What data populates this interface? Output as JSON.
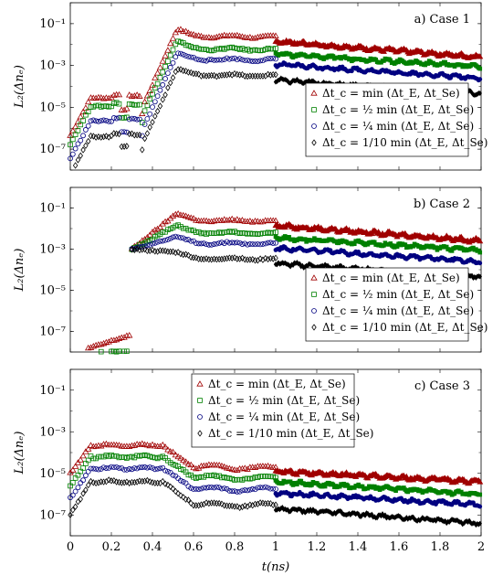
{
  "chart_data": [
    {
      "type": "scatter",
      "title": "a) Case 1",
      "ylabel": "L₂(Δnₑ)",
      "xlabel": "",
      "ylim": [
        1e-08,
        1
      ],
      "yticks": [
        {
          "value": 0.1,
          "label": "10⁻¹"
        },
        {
          "value": 0.001,
          "label": "10⁻³"
        },
        {
          "value": 1e-05,
          "label": "10⁻⁵"
        },
        {
          "value": 1e-07,
          "label": "10⁻⁷"
        }
      ],
      "series": [
        {
          "name": "Δt_c = min(Δt_E, Δt_Se)",
          "color": "#a00000",
          "marker": "triangle",
          "log10": {
            "pre": -4.55,
            "plateau1": -4.55,
            "dip": -4.8,
            "peak": -1.25,
            "mid": -1.55,
            "end": -2.5
          }
        },
        {
          "name": "Δt_c = 1/2 min(Δt_E, Δt_Se)",
          "color": "#008000",
          "marker": "square",
          "log10": {
            "pre": -4.95,
            "plateau1": -4.95,
            "dip": -5.2,
            "peak": -1.85,
            "mid": -2.15,
            "end": -3.0
          }
        },
        {
          "name": "Δt_c = 1/4 min(Δt_E, Δt_Se)",
          "color": "#000080",
          "marker": "circle",
          "log10": {
            "pre": -5.7,
            "plateau1": -5.7,
            "dip": -5.9,
            "peak": -2.4,
            "mid": -2.65,
            "end": -3.55
          }
        },
        {
          "name": "Δt_c = 1/10 min(Δt_E, Δt_Se)",
          "color": "#000000",
          "marker": "diamond",
          "log10": {
            "pre": -6.4,
            "plateau1": -6.4,
            "dip": -6.5,
            "peak": -3.15,
            "mid": -3.4,
            "end": -4.35
          }
        }
      ],
      "legend": [
        "Δt_c = min(Δt_E, Δt_Se)",
        "Δt_c = 1/2 min(Δt_E, Δt_Se)",
        "Δt_c = 1/4 min(Δt_E, Δt_Se)",
        "Δt_c = 1/10 min(Δt_E, Δt_Se)"
      ],
      "legend_position": "center-right"
    },
    {
      "type": "scatter",
      "title": "b) Case 2",
      "ylabel": "L₂(Δnₑ)",
      "xlabel": "",
      "ylim": [
        1e-08,
        1
      ],
      "yticks": [
        {
          "value": 0.1,
          "label": "10⁻¹"
        },
        {
          "value": 0.001,
          "label": "10⁻³"
        },
        {
          "value": 1e-05,
          "label": "10⁻⁵"
        },
        {
          "value": 1e-07,
          "label": "10⁻⁷"
        }
      ],
      "series": [
        {
          "name": "Δt_c = min(Δt_E, Δt_Se)",
          "color": "#a00000",
          "marker": "triangle"
        },
        {
          "name": "Δt_c = 1/2 min(Δt_E, Δt_Se)",
          "color": "#008000",
          "marker": "square"
        },
        {
          "name": "Δt_c = 1/4 min(Δt_E, Δt_Se)",
          "color": "#000080",
          "marker": "circle"
        },
        {
          "name": "Δt_c = 1/10 min(Δt_E, Δt_Se)",
          "color": "#000000",
          "marker": "diamond"
        }
      ],
      "legend_position": "center-right"
    },
    {
      "type": "scatter",
      "title": "c) Case 3",
      "ylabel": "L₂(Δnₑ)",
      "xlabel": "t(ns)",
      "xlim": [
        0,
        2
      ],
      "xticks": [
        "0",
        "0.2",
        "0.4",
        "0.6",
        "0.8",
        "1",
        "1.2",
        "1.4",
        "1.6",
        "1.8",
        "2"
      ],
      "ylim": [
        1e-08,
        1
      ],
      "yticks": [
        {
          "value": 0.1,
          "label": "10⁻¹"
        },
        {
          "value": 0.001,
          "label": "10⁻³"
        },
        {
          "value": 1e-05,
          "label": "10⁻⁵"
        },
        {
          "value": 1e-07,
          "label": "10⁻⁷"
        }
      ],
      "series": [
        {
          "name": "Δt_c = min(Δt_E, Δt_Se)",
          "color": "#a00000",
          "marker": "triangle"
        },
        {
          "name": "Δt_c = 1/2 min(Δt_E, Δt_Se)",
          "color": "#008000",
          "marker": "square"
        },
        {
          "name": "Δt_c = 1/4 min(Δt_E, Δt_Se)",
          "color": "#000080",
          "marker": "circle"
        },
        {
          "name": "Δt_c = 1/10 min(Δt_E, Δt_Se)",
          "color": "#000000",
          "marker": "diamond"
        }
      ],
      "legend_position": "top-center"
    }
  ],
  "legend_labels": [
    "Δt_c = min (Δt_E, Δt_Se)",
    "Δt_c = ½ min (Δt_E, Δt_Se)",
    "Δt_c = ¼ min (Δt_E, Δt_Se)",
    "Δt_c = 1/10 min (Δt_E, Δt_Se)"
  ]
}
